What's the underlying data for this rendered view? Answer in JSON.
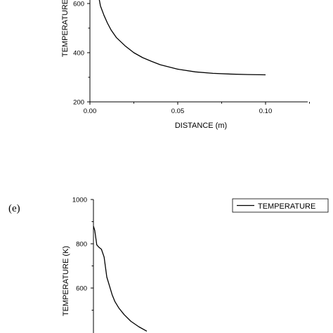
{
  "chart_data": [
    {
      "type": "line",
      "xlabel": "DISTANCE (m)",
      "ylabel": "TEMPERATURE",
      "xlim": [
        0.0,
        0.125
      ],
      "ylim": [
        200,
        700
      ],
      "x_ticks": [
        "0.00",
        "0.05",
        "0.10"
      ],
      "y_ticks": [
        "200",
        "400",
        "600"
      ],
      "series": [
        {
          "x": [
            0.005,
            0.006,
            0.008,
            0.01,
            0.012,
            0.015,
            0.02,
            0.025,
            0.03,
            0.035,
            0.04,
            0.05,
            0.06,
            0.07,
            0.08,
            0.09,
            0.1
          ],
          "y": [
            628,
            590,
            552,
            520,
            493,
            462,
            428,
            400,
            380,
            365,
            351,
            333,
            322,
            316,
            313,
            311,
            310
          ]
        }
      ]
    },
    {
      "type": "line",
      "panel_label": "(e)",
      "xlabel": "",
      "ylabel": "TEMPERATURE (K)",
      "ylim": [
        400,
        1000
      ],
      "y_ticks": [
        "1000",
        "800",
        "600"
      ],
      "legend": {
        "entries": [
          "TEMPERATURE"
        ],
        "position": "top-right"
      },
      "series": [
        {
          "name": "TEMPERATURE",
          "x": [
            0.0,
            0.002,
            0.005,
            0.008,
            0.012,
            0.016,
            0.02,
            0.024,
            0.028,
            0.032,
            0.038,
            0.046,
            0.056,
            0.068,
            0.08
          ],
          "y": [
            880,
            860,
            795,
            785,
            775,
            740,
            650,
            610,
            570,
            540,
            510,
            480,
            450,
            425,
            405
          ]
        }
      ]
    }
  ]
}
